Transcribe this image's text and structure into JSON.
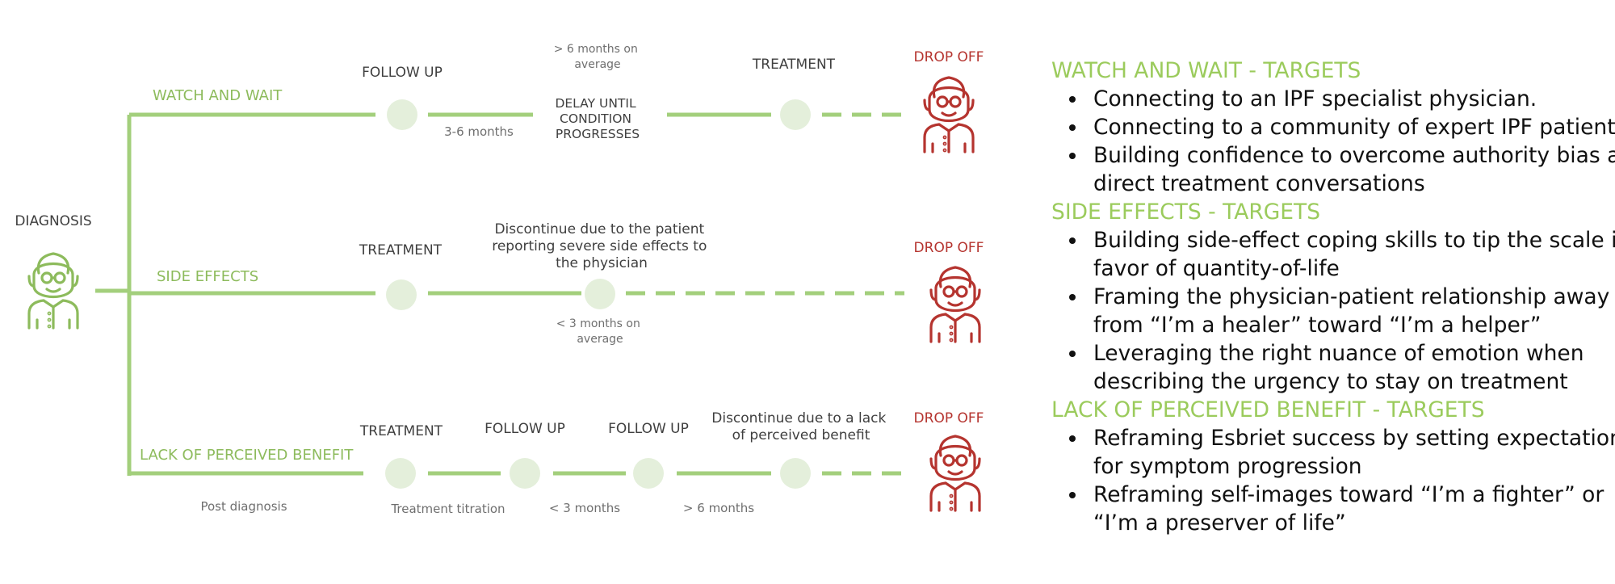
{
  "colors": {
    "green": "#9bcb5c",
    "line": "#a3cf7c",
    "node": "#e4efdb",
    "red": "#b5342f",
    "patient_green": "#8dbb5c"
  },
  "diagram": {
    "diagnosis": "DIAGNOSIS",
    "branches": {
      "watch": {
        "label": "WATCH AND WAIT",
        "follow_up": "FOLLOW UP",
        "interval": "3-6 months",
        "avg": [
          "> 6 months on",
          "average"
        ],
        "delay": [
          "DELAY UNTIL",
          "CONDITION",
          "PROGRESSES"
        ],
        "treatment": "TREATMENT",
        "drop": "DROP OFF"
      },
      "side": {
        "label": "SIDE EFFECTS",
        "treatment": "TREATMENT",
        "discontinue": [
          "Discontinue due to the patient",
          "reporting severe side effects to",
          "the physician"
        ],
        "avg": [
          "< 3 months on",
          "average"
        ],
        "drop": "DROP OFF"
      },
      "lack": {
        "label": "LACK OF PERCEIVED BENEFIT",
        "treatment": "TREATMENT",
        "follow_up_1": "FOLLOW UP",
        "follow_up_2": "FOLLOW UP",
        "discontinue": [
          "Discontinue due to a lack",
          "of perceived benefit"
        ],
        "drop": "DROP OFF",
        "post_diagnosis": "Post diagnosis",
        "titration": "Treatment titration",
        "lt3": "< 3 months",
        "gt6": "> 6 months"
      }
    }
  },
  "targets": [
    {
      "title": "WATCH AND WAIT - TARGETS",
      "items": [
        [
          "Connecting to an IPF specialist physician."
        ],
        [
          "Connecting to a community of expert IPF patients"
        ],
        [
          "Building confidence to overcome authority bias and",
          "direct treatment conversations"
        ]
      ]
    },
    {
      "title": "SIDE EFFECTS - TARGETS",
      "items": [
        [
          "Building side-effect coping skills to tip the scale in",
          "favor of quantity-of-life"
        ],
        [
          "Framing the physician-patient relationship away",
          "from “I’m a healer” toward “I’m a helper”"
        ],
        [
          "Leveraging the right nuance of emotion when",
          "describing the urgency to stay on treatment"
        ]
      ]
    },
    {
      "title": "LACK OF PERCEIVED BENEFIT - TARGETS",
      "items": [
        [
          "Reframing Esbriet success by setting expectations",
          "for symptom progression"
        ],
        [
          "Reframing self-images toward “I’m a fighter” or",
          "“I’m a preserver of life”"
        ]
      ]
    }
  ]
}
